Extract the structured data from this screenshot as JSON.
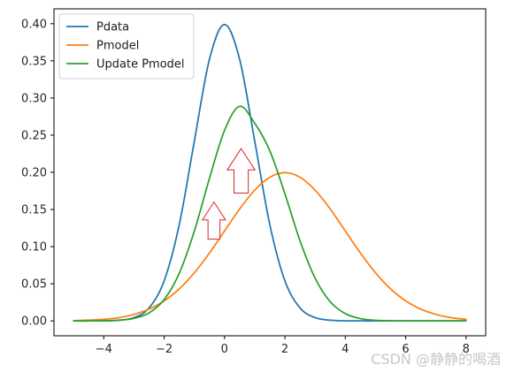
{
  "chart_data": {
    "type": "line",
    "xlim": [
      -5.65,
      8.65
    ],
    "ylim": [
      -0.02,
      0.42
    ],
    "x_ticks": [
      -4,
      -2,
      0,
      2,
      4,
      6,
      8
    ],
    "x_tick_labels": [
      "−4",
      "−2",
      "0",
      "2",
      "4",
      "6",
      "8"
    ],
    "y_ticks": [
      0.0,
      0.05,
      0.1,
      0.15,
      0.2,
      0.25,
      0.3,
      0.35,
      0.4
    ],
    "y_tick_labels": [
      "0.00",
      "0.05",
      "0.10",
      "0.15",
      "0.20",
      "0.25",
      "0.30",
      "0.35",
      "0.40"
    ],
    "grid": false,
    "legend_position": "top-left",
    "x": [
      -5,
      -4.5,
      -4,
      -3.5,
      -3,
      -2.5,
      -2,
      -1.5,
      -1,
      -0.5,
      0,
      0.5,
      1,
      1.5,
      2,
      2.5,
      3,
      3.5,
      4,
      4.5,
      5,
      5.5,
      6,
      6.5,
      7,
      7.5,
      8
    ],
    "series": [
      {
        "name": "Pdata",
        "color": "#1f77b4",
        "values": [
          0.0,
          0.0,
          0.0001,
          0.0009,
          0.0044,
          0.0175,
          0.054,
          0.1295,
          0.242,
          0.3521,
          0.3989,
          0.3521,
          0.242,
          0.1295,
          0.054,
          0.0175,
          0.0044,
          0.0009,
          0.0001,
          0.0,
          0.0,
          0.0,
          0.0,
          0.0,
          0.0,
          0.0,
          0.0
        ]
      },
      {
        "name": "Pmodel",
        "color": "#ff7f0e",
        "values": [
          0.0004,
          0.0011,
          0.0022,
          0.0044,
          0.0088,
          0.0159,
          0.027,
          0.0431,
          0.0648,
          0.0913,
          0.121,
          0.1506,
          0.176,
          0.1933,
          0.1995,
          0.1933,
          0.176,
          0.1506,
          0.121,
          0.0913,
          0.0648,
          0.0431,
          0.027,
          0.0159,
          0.0088,
          0.0044,
          0.0022
        ]
      },
      {
        "name": "Update Pmodel",
        "color": "#2ca02c",
        "values": [
          0.0,
          0.0,
          0.0002,
          0.0009,
          0.0034,
          0.0108,
          0.0287,
          0.0641,
          0.1209,
          0.1918,
          0.2564,
          0.2888,
          0.266,
          0.229,
          0.171,
          0.1078,
          0.0575,
          0.0258,
          0.0098,
          0.0031,
          0.0008,
          0.0002,
          0.0,
          0.0,
          0.0,
          0.0,
          0.0
        ]
      }
    ],
    "annotations": [
      {
        "type": "up-arrow",
        "x": 0.55,
        "y_base": 0.172,
        "y_tip": 0.232,
        "color": "#d62728"
      },
      {
        "type": "up-arrow",
        "x": -0.35,
        "y_base": 0.11,
        "y_tip": 0.16,
        "color": "#d62728"
      }
    ]
  },
  "watermark": {
    "text": "CSDN @静静的喝酒",
    "color": "#c7c7c7"
  }
}
